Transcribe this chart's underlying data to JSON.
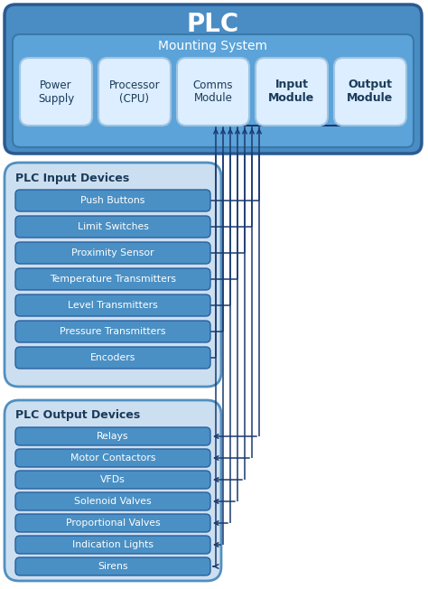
{
  "title": "PLC",
  "plc_box_color": "#4a8cc4",
  "plc_box_edge": "#2a5a90",
  "mounting_label": "Mounting System",
  "mounting_bg": "#5ba3d9",
  "mounting_edge": "#3a78a8",
  "module_boxes": [
    {
      "label": "Power\nSupply",
      "bold": false
    },
    {
      "label": "Processor\n(CPU)",
      "bold": false
    },
    {
      "label": "Comms\nModule",
      "bold": false
    },
    {
      "label": "Input\nModule",
      "bold": true
    },
    {
      "label": "Output\nModule",
      "bold": true
    }
  ],
  "module_box_bg": "#dceeff",
  "module_box_edge": "#a0c4e0",
  "input_section_label": "PLC Input Devices",
  "input_section_bg": "#ccdff0",
  "input_section_edge": "#5090c0",
  "input_devices": [
    "Push Buttons",
    "Limit Switches",
    "Proximity Sensor",
    "Temperature Transmitters",
    "Level Transmitters",
    "Pressure Transmitters",
    "Encoders"
  ],
  "output_section_label": "PLC Output Devices",
  "output_section_bg": "#ccdff0",
  "output_section_edge": "#5090c0",
  "output_devices": [
    "Relays",
    "Motor Contactors",
    "VFDs",
    "Solenoid Valves",
    "Proportional Valves",
    "Indication Lights",
    "Sirens"
  ],
  "device_btn_color": "#4a90c4",
  "device_btn_edge": "#2a60a0",
  "device_text_color": "#ffffff",
  "line_color": "#1a3a70",
  "line_lw": 1.1,
  "arrow_color": "#1a3a70"
}
